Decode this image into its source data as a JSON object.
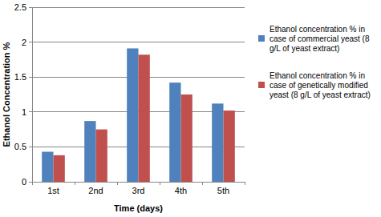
{
  "chart_data": {
    "type": "bar",
    "x_label": "Time (days)",
    "y_label": "Ethanol Concentration %",
    "categories": [
      "1st",
      "2nd",
      "3rd",
      "4th",
      "5th"
    ],
    "series": [
      {
        "name": "Ethanol concentration % in case of commercial yeast (8 g/L of yeast extract)",
        "color": "#4f81bd",
        "values": [
          0.43,
          0.87,
          1.91,
          1.42,
          1.12
        ]
      },
      {
        "name": "Ethanol concentration % in case of genetically modified yeast (8 g/L of yeast extract)",
        "color": "#c0504d",
        "values": [
          0.38,
          0.75,
          1.82,
          1.25,
          1.02
        ]
      }
    ],
    "ylim": [
      0,
      2.5
    ],
    "yticks": [
      0,
      0.5,
      1,
      1.5,
      2,
      2.5
    ],
    "grid": true,
    "legend": "right"
  }
}
